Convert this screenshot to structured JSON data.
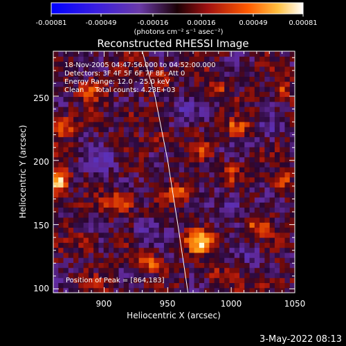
{
  "chart_data": {
    "type": "heatmap",
    "title": "Reconstructed RHESSI Image",
    "xlabel": "Heliocentric X (arcsec)",
    "ylabel": "Heliocentric Y (arcsec)",
    "xlim": [
      860,
      1050
    ],
    "ylim": [
      97,
      285
    ],
    "x_ticks": [
      "900",
      "950",
      "1000",
      "1050"
    ],
    "y_ticks": [
      "100",
      "150",
      "200",
      "250"
    ],
    "colorbar": {
      "ticks": [
        "-0.00081",
        "-0.00049",
        "-0.00016",
        "0.00016",
        "0.00049",
        "0.00081"
      ],
      "label": "(photons cm⁻² s⁻¹ asec⁻²)",
      "range": [
        -0.00081,
        0.00081
      ]
    },
    "annotations": [
      "18-Nov-2005 04:47:56.000 to 04:52:00.000",
      "Detectors: 3F 4F 5F 6F 7F 8F, Att 0",
      "Energy Range: 12.0 - 25.0 keV",
      "Clean     Total counts: 4.23E+03"
    ],
    "peak_label": "Position of Peak = [864,183]",
    "peak": {
      "x": 864,
      "y": 183
    },
    "hotspots": [
      {
        "x": 864,
        "y": 183,
        "v": 0.95,
        "sx": 7,
        "sy": 10
      },
      {
        "x": 975,
        "y": 137,
        "v": 0.85,
        "sx": 10,
        "sy": 9
      },
      {
        "x": 868,
        "y": 228,
        "v": 0.55,
        "sx": 9,
        "sy": 8
      },
      {
        "x": 912,
        "y": 168,
        "v": 0.55,
        "sx": 12,
        "sy": 8
      },
      {
        "x": 1005,
        "y": 225,
        "v": 0.55,
        "sx": 10,
        "sy": 7
      },
      {
        "x": 1040,
        "y": 255,
        "v": 0.5,
        "sx": 7,
        "sy": 9
      },
      {
        "x": 935,
        "y": 120,
        "v": 0.5,
        "sx": 10,
        "sy": 6
      },
      {
        "x": 960,
        "y": 175,
        "v": 0.45,
        "sx": 9,
        "sy": 8
      },
      {
        "x": 890,
        "y": 255,
        "v": 0.45,
        "sx": 10,
        "sy": 7
      },
      {
        "x": 1020,
        "y": 150,
        "v": 0.45,
        "sx": 10,
        "sy": 8
      },
      {
        "x": 1040,
        "y": 185,
        "v": 0.45,
        "sx": 8,
        "sy": 9
      },
      {
        "x": 1030,
        "y": 105,
        "v": 0.4,
        "sx": 10,
        "sy": 6
      },
      {
        "x": 945,
        "y": 265,
        "v": 0.4,
        "sx": 9,
        "sy": 7
      },
      {
        "x": 990,
        "y": 255,
        "v": 0.35,
        "sx": 8,
        "sy": 7
      },
      {
        "x": 1000,
        "y": 190,
        "v": 0.4,
        "sx": 8,
        "sy": 8
      },
      {
        "x": 885,
        "y": 135,
        "v": 0.4,
        "sx": 9,
        "sy": 8
      },
      {
        "x": 945,
        "y": 215,
        "v": 0.35,
        "sx": 9,
        "sy": 7
      },
      {
        "x": 990,
        "y": 110,
        "v": 0.35,
        "sx": 10,
        "sy": 6
      },
      {
        "x": 975,
        "y": 210,
        "v": 0.3,
        "sx": 8,
        "sy": 7
      },
      {
        "x": 920,
        "y": 235,
        "v": 0.3,
        "sx": 8,
        "sy": 8
      },
      {
        "x": 895,
        "y": 105,
        "v": 0.3,
        "sx": 9,
        "sy": 6
      },
      {
        "x": 1000,
        "y": 165,
        "v": -0.35,
        "sx": 12,
        "sy": 10
      },
      {
        "x": 960,
        "y": 240,
        "v": -0.35,
        "sx": 12,
        "sy": 10
      },
      {
        "x": 900,
        "y": 200,
        "v": -0.35,
        "sx": 12,
        "sy": 10
      },
      {
        "x": 1030,
        "y": 225,
        "v": -0.3,
        "sx": 10,
        "sy": 10
      },
      {
        "x": 930,
        "y": 145,
        "v": -0.3,
        "sx": 10,
        "sy": 10
      },
      {
        "x": 1015,
        "y": 125,
        "v": -0.3,
        "sx": 10,
        "sy": 8
      }
    ],
    "limb_curve": [
      {
        "x": 930,
        "y": 285
      },
      {
        "x": 940,
        "y": 250
      },
      {
        "x": 950,
        "y": 200
      },
      {
        "x": 958,
        "y": 150
      },
      {
        "x": 966,
        "y": 97
      }
    ]
  },
  "timestamp": "3-May-2022 08:13"
}
